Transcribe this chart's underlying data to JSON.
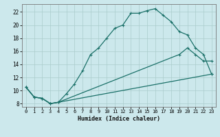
{
  "xlabel": "Humidex (Indice chaleur)",
  "xlim": [
    -0.5,
    23.5
  ],
  "ylim": [
    7.5,
    23.2
  ],
  "xticks": [
    0,
    1,
    2,
    3,
    4,
    5,
    6,
    7,
    8,
    9,
    10,
    11,
    12,
    13,
    14,
    15,
    16,
    17,
    18,
    19,
    20,
    21,
    22,
    23
  ],
  "yticks": [
    8,
    10,
    12,
    14,
    16,
    18,
    20,
    22
  ],
  "background_color": "#cce8ec",
  "grid_color": "#aacccc",
  "line_color": "#1a7068",
  "curve_top_x": [
    0,
    1,
    2,
    3,
    4,
    5,
    6,
    7,
    8,
    9,
    10,
    11,
    12,
    13,
    14,
    15,
    16,
    17,
    18,
    19,
    20,
    21,
    22,
    23
  ],
  "curve_top_y": [
    10.5,
    9.0,
    8.8,
    8.0,
    8.2,
    9.5,
    11.0,
    13.0,
    15.5,
    16.5,
    18.0,
    19.5,
    20.0,
    21.8,
    21.8,
    22.2,
    22.5,
    21.5,
    20.5,
    19.0,
    18.5,
    16.5,
    15.5,
    12.5
  ],
  "curve_mid_x": [
    0,
    1,
    2,
    3,
    4,
    19,
    20,
    21,
    22,
    23
  ],
  "curve_mid_y": [
    10.5,
    9.0,
    8.8,
    8.0,
    8.2,
    15.5,
    16.5,
    15.5,
    14.5,
    14.5
  ],
  "curve_bot_x": [
    0,
    1,
    2,
    3,
    4,
    23
  ],
  "curve_bot_y": [
    10.5,
    9.0,
    8.8,
    8.0,
    8.2,
    12.5
  ]
}
